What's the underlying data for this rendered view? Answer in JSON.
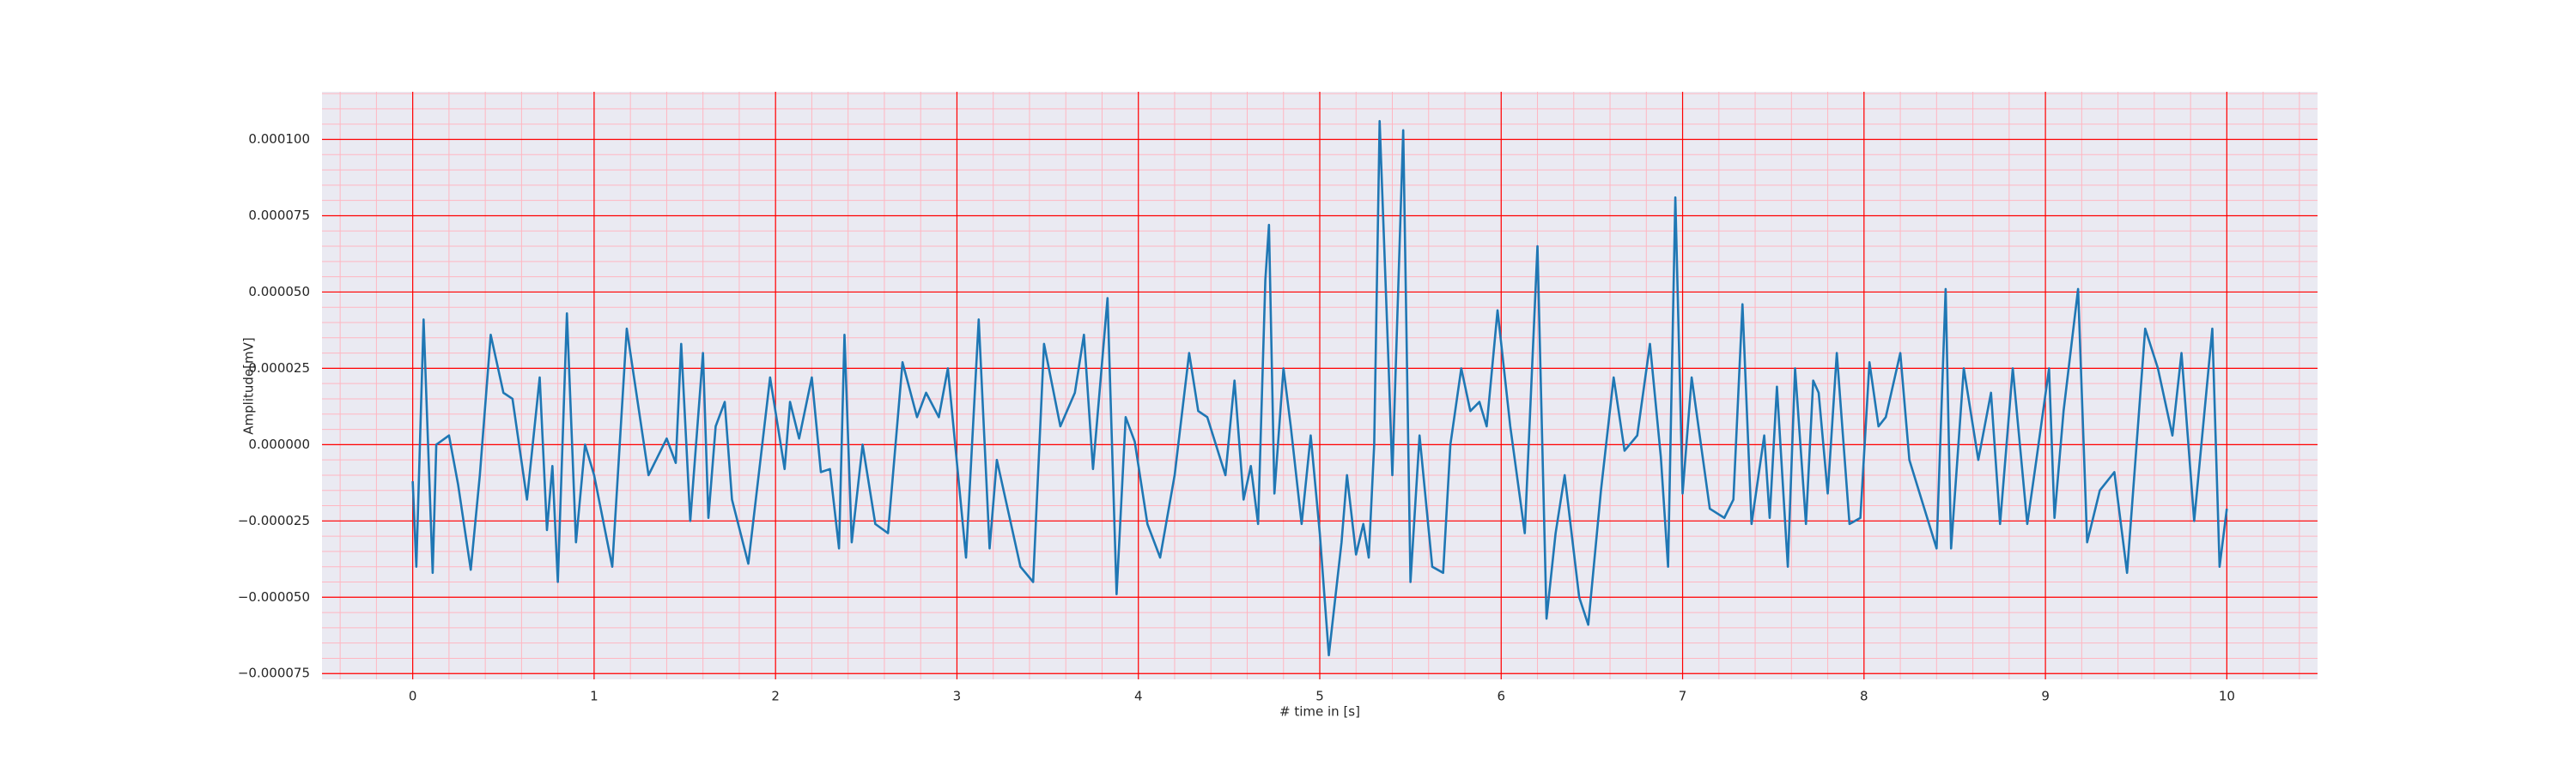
{
  "chart_data": {
    "type": "line",
    "x_label": "# time in [s]",
    "y_label": "Amplitude[mV]",
    "x": [
      0,
      0.02,
      0.06,
      0.11,
      0.13,
      0.2,
      0.25,
      0.32,
      0.37,
      0.43,
      0.5,
      0.55,
      0.63,
      0.7,
      0.74,
      0.77,
      0.8,
      0.85,
      0.9,
      0.95,
      1.0,
      1.1,
      1.18,
      1.22,
      1.3,
      1.4,
      1.45,
      1.48,
      1.53,
      1.6,
      1.63,
      1.67,
      1.72,
      1.76,
      1.85,
      1.97,
      2.05,
      2.08,
      2.13,
      2.2,
      2.25,
      2.3,
      2.35,
      2.38,
      2.42,
      2.48,
      2.55,
      2.62,
      2.7,
      2.78,
      2.83,
      2.9,
      2.95,
      3.05,
      3.12,
      3.18,
      3.22,
      3.35,
      3.42,
      3.48,
      3.57,
      3.65,
      3.7,
      3.75,
      3.83,
      3.88,
      3.93,
      3.98,
      4.05,
      4.12,
      4.2,
      4.28,
      4.33,
      4.38,
      4.48,
      4.53,
      4.58,
      4.62,
      4.66,
      4.7,
      4.72,
      4.75,
      4.8,
      4.84,
      4.9,
      4.95,
      5.0,
      5.05,
      5.12,
      5.15,
      5.2,
      5.24,
      5.27,
      5.3,
      5.33,
      5.38,
      5.4,
      5.46,
      5.5,
      5.55,
      5.62,
      5.68,
      5.72,
      5.78,
      5.83,
      5.88,
      5.92,
      5.98,
      6.05,
      6.13,
      6.2,
      6.25,
      6.3,
      6.35,
      6.43,
      6.48,
      6.55,
      6.62,
      6.68,
      6.75,
      6.82,
      6.88,
      6.92,
      6.96,
      7.0,
      7.05,
      7.15,
      7.23,
      7.28,
      7.33,
      7.38,
      7.45,
      7.48,
      7.52,
      7.58,
      7.62,
      7.68,
      7.72,
      7.75,
      7.8,
      7.85,
      7.92,
      7.98,
      8.03,
      8.08,
      8.12,
      8.2,
      8.25,
      8.4,
      8.45,
      8.48,
      8.55,
      8.63,
      8.7,
      8.75,
      8.82,
      8.9,
      8.95,
      9.02,
      9.05,
      9.1,
      9.18,
      9.23,
      9.3,
      9.38,
      9.45,
      9.55,
      9.62,
      9.7,
      9.75,
      9.82,
      9.92,
      9.96,
      10.0
    ],
    "series": [
      {
        "color": "#1f77b4",
        "values": [
          -1.2e-05,
          -4e-05,
          4.1e-05,
          -4.2e-05,
          0,
          3e-06,
          -1.3e-05,
          -4.1e-05,
          -1e-05,
          3.6e-05,
          1.7e-05,
          1.5e-05,
          -1.8e-05,
          2.2e-05,
          -2.8e-05,
          -7e-06,
          -4.5e-05,
          4.3e-05,
          -3.2e-05,
          0,
          -1e-05,
          -4e-05,
          3.8e-05,
          2.2e-05,
          -1e-05,
          2e-06,
          -6e-06,
          3.3e-05,
          -2.5e-05,
          3e-05,
          -2.4e-05,
          6e-06,
          1.4e-05,
          -1.8e-05,
          -3.9e-05,
          2.2e-05,
          -8e-06,
          1.4e-05,
          2e-06,
          2.2e-05,
          -9e-06,
          -8e-06,
          -3.4e-05,
          3.6e-05,
          -3.2e-05,
          0,
          -2.6e-05,
          -2.9e-05,
          2.7e-05,
          9e-06,
          1.7e-05,
          9e-06,
          2.5e-05,
          -3.7e-05,
          4.1e-05,
          -3.4e-05,
          -5e-06,
          -4e-05,
          -4.5e-05,
          3.3e-05,
          6e-06,
          1.7e-05,
          3.6e-05,
          -8e-06,
          4.8e-05,
          -4.9e-05,
          9e-06,
          1e-06,
          -2.6e-05,
          -3.7e-05,
          -1e-05,
          3e-05,
          1.1e-05,
          9e-06,
          -1e-05,
          2.1e-05,
          -1.8e-05,
          -7e-06,
          -2.6e-05,
          5.4e-05,
          7.2e-05,
          -1.6e-05,
          2.5e-05,
          6e-06,
          -2.6e-05,
          3e-06,
          -2.9e-05,
          -6.9e-05,
          -3.2e-05,
          -1e-05,
          -3.6e-05,
          -2.6e-05,
          -3.7e-05,
          0,
          0.000106,
          2.5e-05,
          -1e-05,
          0.000103,
          -4.5e-05,
          3e-06,
          -4e-05,
          -4.2e-05,
          0,
          2.5e-05,
          1.1e-05,
          1.4e-05,
          6e-06,
          4.4e-05,
          6e-06,
          -2.9e-05,
          6.5e-05,
          -5.7e-05,
          -2.9e-05,
          -1e-05,
          -5e-05,
          -5.9e-05,
          -1.5e-05,
          2.2e-05,
          -2e-06,
          3e-06,
          3.3e-05,
          -4e-06,
          -4e-05,
          8.1e-05,
          -1.6e-05,
          2.2e-05,
          -2.1e-05,
          -2.4e-05,
          -1.8e-05,
          4.6e-05,
          -2.6e-05,
          3e-06,
          -2.4e-05,
          1.9e-05,
          -4e-05,
          2.5e-05,
          -2.6e-05,
          2.1e-05,
          1.7e-05,
          -1.6e-05,
          3e-05,
          -2.6e-05,
          -2.4e-05,
          2.7e-05,
          6e-06,
          9e-06,
          3e-05,
          -5e-06,
          -3.4e-05,
          5.1e-05,
          -3.4e-05,
          2.5e-05,
          -5e-06,
          1.7e-05,
          -2.6e-05,
          2.5e-05,
          -2.6e-05,
          -5e-06,
          2.5e-05,
          -2.4e-05,
          1.1e-05,
          5.1e-05,
          -3.2e-05,
          -1.5e-05,
          -9e-06,
          -4.2e-05,
          3.8e-05,
          2.5e-05,
          3e-06,
          3e-05,
          -2.5e-05,
          3.8e-05,
          -4e-05,
          -2.1e-05
        ]
      }
    ],
    "xlim": [
      -0.5,
      10.5
    ],
    "ylim": [
      -7.69e-05,
      0.0001156
    ],
    "xticks": [
      0,
      1,
      2,
      3,
      4,
      5,
      6,
      7,
      8,
      9,
      10
    ],
    "yticks": [
      {
        "value": -7.5e-05,
        "label": "−0.000075"
      },
      {
        "value": -5e-05,
        "label": "−0.000050"
      },
      {
        "value": -2.5e-05,
        "label": "−0.000025"
      },
      {
        "value": 0,
        "label": "0.000000"
      },
      {
        "value": 2.5e-05,
        "label": "0.000025"
      },
      {
        "value": 5e-05,
        "label": "0.000050"
      },
      {
        "value": 7.5e-05,
        "label": "0.000075"
      },
      {
        "value": 0.0001,
        "label": "0.000100"
      }
    ],
    "grid": true,
    "grid_color": "#ff0000",
    "minor_grid": true,
    "minor_grid_color": "#ffb6c1",
    "background": "#eaeaf2"
  }
}
